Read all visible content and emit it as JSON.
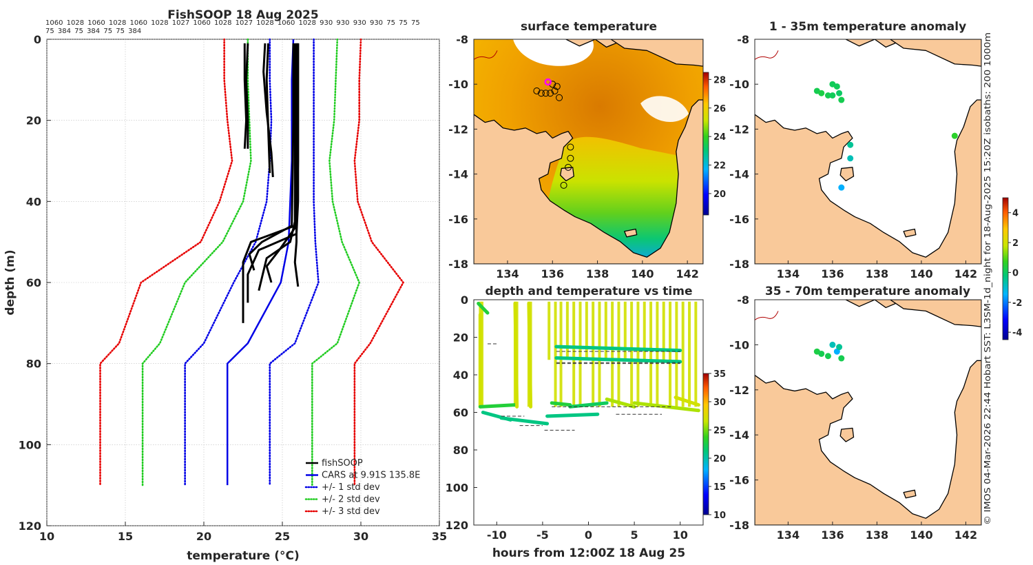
{
  "figure": {
    "title": "FishSOOP 18 Aug 2025",
    "station_labels": "1060 1028 1060 1028 1060 1028 1027 1060 1028 1027 1028 1060 1028 930 930 930 930 75 75 75 75 384 75 384 75 75 384",
    "side_note": "© IMOS 04-Mar-2026 22:44 Hobart SST: L3SM-1d_night for 18-Aug-2025 15:20Z isobaths: 200  1000m"
  },
  "colors": {
    "fishsoop": "#000000",
    "cars": "#0000e6",
    "std1": "#0000e6",
    "std2": "#22cc22",
    "std3": "#e60000",
    "land": "#f9c99a",
    "coastline": "#000000",
    "marker_pink": "#ff00ff"
  },
  "chart_data": [
    {
      "id": "profile",
      "type": "line",
      "title": "",
      "xlabel": "temperature (°C)",
      "ylabel": "depth (m)",
      "xlim": [
        10,
        35
      ],
      "ylim": [
        0,
        120
      ],
      "y_reversed": true,
      "xticks": [
        10,
        15,
        20,
        25,
        30,
        35
      ],
      "yticks": [
        0,
        20,
        40,
        60,
        80,
        100,
        120
      ],
      "grid": true,
      "legend_placement": "bottom-right",
      "depth_levels": [
        0,
        10,
        20,
        30,
        40,
        50,
        60,
        75,
        80,
        110
      ],
      "series": [
        {
          "name": "CARS at 9.91S 135.8E",
          "style": "solid",
          "color_key": "cars",
          "values": [
            25.7,
            25.6,
            25.6,
            25.6,
            25.5,
            25.4,
            24.9,
            22.8,
            21.5,
            21.5
          ]
        },
        {
          "name": "+/- 1 std dev",
          "style": "dotted",
          "color_key": "std1",
          "values": [
            24.2,
            24.2,
            24.3,
            24.2,
            24.0,
            23.3,
            21.9,
            20.0,
            18.8,
            18.8
          ]
        },
        {
          "name": "",
          "style": "dotted",
          "color_key": "std1",
          "values": [
            27.0,
            27.0,
            27.0,
            27.0,
            27.0,
            27.1,
            27.3,
            25.8,
            24.2,
            24.2
          ]
        },
        {
          "name": "+/- 2 std dev",
          "style": "dotted",
          "color_key": "std2",
          "values": [
            22.8,
            22.8,
            22.9,
            23.0,
            22.5,
            21.2,
            18.8,
            17.2,
            16.1,
            16.1
          ]
        },
        {
          "name": "",
          "style": "dotted",
          "color_key": "std2",
          "values": [
            28.5,
            28.4,
            28.3,
            28.0,
            28.2,
            28.8,
            29.9,
            28.5,
            26.9,
            26.9
          ]
        },
        {
          "name": "+/- 3 std dev",
          "style": "dotted",
          "color_key": "std3",
          "values": [
            21.3,
            21.3,
            21.5,
            21.8,
            21.0,
            19.8,
            16.0,
            14.6,
            13.4,
            13.4
          ]
        },
        {
          "name": "",
          "style": "dotted",
          "color_key": "std3",
          "values": [
            30.0,
            29.9,
            29.9,
            29.6,
            29.8,
            30.7,
            32.7,
            30.6,
            29.6,
            29.6
          ]
        }
      ],
      "observations": {
        "name": "fishSOOP",
        "color_key": "fishsoop",
        "casts": [
          {
            "depth": [
              1,
              10,
              20,
              27
            ],
            "temp": [
              22.6,
              22.6,
              22.7,
              22.6
            ]
          },
          {
            "depth": [
              1,
              10,
              20,
              27
            ],
            "temp": [
              22.8,
              22.7,
              22.8,
              22.8
            ]
          },
          {
            "depth": [
              1,
              8,
              18,
              28,
              34
            ],
            "temp": [
              23.9,
              23.8,
              24.0,
              24.3,
              24.4
            ]
          },
          {
            "depth": [
              1,
              10,
              22,
              33
            ],
            "temp": [
              24.1,
              24.0,
              24.1,
              24.2
            ]
          },
          {
            "depth": [
              1,
              20,
              40,
              46,
              50,
              55,
              70
            ],
            "temp": [
              25.9,
              25.9,
              25.9,
              25.8,
              23.0,
              22.5,
              22.5
            ]
          },
          {
            "depth": [
              1,
              20,
              40,
              48,
              52,
              58,
              65
            ],
            "temp": [
              26.0,
              26.0,
              26.0,
              25.9,
              23.5,
              22.8,
              22.8
            ]
          },
          {
            "depth": [
              1,
              25,
              45,
              50,
              54,
              62
            ],
            "temp": [
              25.8,
              25.8,
              25.8,
              25.5,
              24.0,
              23.5
            ]
          },
          {
            "depth": [
              1,
              30,
              46,
              52,
              56,
              60
            ],
            "temp": [
              26.0,
              26.0,
              25.9,
              24.8,
              24.0,
              24.3
            ]
          },
          {
            "depth": [
              1,
              30,
              45,
              50,
              55,
              61
            ],
            "temp": [
              25.9,
              25.9,
              25.9,
              25.9,
              25.8,
              26.0
            ]
          },
          {
            "depth": [
              1,
              20,
              46,
              50,
              53,
              57
            ],
            "temp": [
              25.7,
              25.7,
              25.6,
              23.7,
              22.9,
              23.2
            ]
          }
        ]
      }
    },
    {
      "id": "sst_map",
      "type": "heatmap",
      "title": "surface temperature",
      "xlim": [
        132.5,
        142.7
      ],
      "ylim": [
        -18,
        -8
      ],
      "xticks": [
        134,
        136,
        138,
        140,
        142
      ],
      "yticks": [
        -8,
        -10,
        -12,
        -14,
        -16,
        -18
      ],
      "colorbar": {
        "min": 18.5,
        "max": 28.5,
        "ticks": [
          20,
          22,
          24,
          26,
          28
        ]
      },
      "markers": [
        {
          "lon": 135.3,
          "lat": -10.3
        },
        {
          "lon": 135.5,
          "lat": -10.4
        },
        {
          "lon": 135.7,
          "lat": -10.4
        },
        {
          "lon": 135.9,
          "lat": -10.4
        },
        {
          "lon": 136.1,
          "lat": -10.3
        },
        {
          "lon": 136.2,
          "lat": -10.1
        },
        {
          "lon": 136.3,
          "lat": -10.6
        },
        {
          "lon": 136.0,
          "lat": -10.0
        },
        {
          "lon": 136.8,
          "lat": -12.8
        },
        {
          "lon": 136.8,
          "lat": -13.3
        },
        {
          "lon": 136.7,
          "lat": -13.7
        },
        {
          "lon": 136.5,
          "lat": -14.5
        }
      ],
      "highlight": {
        "lon": 135.8,
        "lat": -9.9
      }
    },
    {
      "id": "time_depth",
      "type": "scatter",
      "title": "depth and temperature vs time",
      "xlabel": "hours from 12:00Z 18 Aug 25",
      "xlim": [
        -12.5,
        12.5
      ],
      "ylim": [
        0,
        120
      ],
      "y_reversed": true,
      "xticks": [
        -10,
        -5,
        0,
        5,
        10
      ],
      "yticks": [
        0,
        20,
        40,
        60,
        80,
        100,
        120
      ],
      "colorbar": {
        "min": 10,
        "max": 35,
        "ticks": [
          10,
          15,
          20,
          25,
          30,
          35
        ]
      },
      "segments": [
        {
          "t": [
            -12.0,
            -11.0
          ],
          "depth": [
            2,
            7
          ],
          "temp": 23
        },
        {
          "t": [
            -11.8,
            -11.8
          ],
          "depth": [
            8,
            57
          ],
          "temp": 27
        },
        {
          "t": [
            -11.8,
            -8.0
          ],
          "depth": [
            57,
            56
          ],
          "temp": 23
        },
        {
          "t": [
            -11.5,
            -8.5
          ],
          "depth": [
            60,
            64
          ],
          "temp": 21
        },
        {
          "t": [
            -9.5,
            -4.5
          ],
          "depth": [
            63,
            66
          ],
          "temp": 21
        },
        {
          "t": [
            -8.0,
            -7.8
          ],
          "depth": [
            2,
            57
          ],
          "temp": 27
        },
        {
          "t": [
            -6.5,
            -6.3
          ],
          "depth": [
            2,
            57
          ],
          "temp": 27
        },
        {
          "t": [
            -4.0,
            -2.0
          ],
          "depth": [
            55,
            56
          ],
          "temp": 23
        },
        {
          "t": [
            -4.5,
            1.0
          ],
          "depth": [
            62,
            61
          ],
          "temp": 21
        },
        {
          "t": [
            -3.5,
            10.0
          ],
          "depth": [
            25,
            27
          ],
          "temp": 21
        },
        {
          "t": [
            -3.5,
            10.0
          ],
          "depth": [
            31,
            33
          ],
          "temp": 21
        },
        {
          "t": [
            -2.0,
            2.0
          ],
          "depth": [
            57,
            55
          ],
          "temp": 22
        },
        {
          "t": [
            2.0,
            5.0
          ],
          "depth": [
            53,
            57
          ],
          "temp": 26
        },
        {
          "t": [
            5.0,
            12.0
          ],
          "depth": [
            55,
            59
          ],
          "temp": 26
        },
        {
          "t": [
            9.5,
            12.0
          ],
          "depth": [
            52,
            56
          ],
          "temp": 27
        }
      ]
    },
    {
      "id": "anomaly_map_upper",
      "type": "scatter",
      "title": "1 - 35m temperature anomaly",
      "xlim": [
        132.5,
        142.7
      ],
      "ylim": [
        -18,
        -8
      ],
      "xticks": [
        134,
        136,
        138,
        140,
        142
      ],
      "yticks": [
        -8,
        -10,
        -12,
        -14,
        -16,
        -18
      ],
      "colorbar": {
        "min": -4.5,
        "max": 5,
        "ticks": [
          -4,
          -2,
          0,
          2,
          4
        ]
      },
      "points": [
        {
          "lon": 135.3,
          "lat": -10.3,
          "anom": 0.2
        },
        {
          "lon": 135.5,
          "lat": -10.4,
          "anom": 0.3
        },
        {
          "lon": 135.8,
          "lat": -10.5,
          "anom": 0.2
        },
        {
          "lon": 136.0,
          "lat": -10.5,
          "anom": 0.1
        },
        {
          "lon": 136.3,
          "lat": -10.4,
          "anom": 0.0
        },
        {
          "lon": 136.4,
          "lat": -10.7,
          "anom": 0.2
        },
        {
          "lon": 136.0,
          "lat": -10.0,
          "anom": 0.1
        },
        {
          "lon": 136.2,
          "lat": -10.1,
          "anom": 0.1
        },
        {
          "lon": 136.8,
          "lat": -12.7,
          "anom": -0.5
        },
        {
          "lon": 136.8,
          "lat": -13.3,
          "anom": -0.8
        },
        {
          "lon": 136.4,
          "lat": -14.6,
          "anom": -1.5
        },
        {
          "lon": 141.5,
          "lat": -12.3,
          "anom": 0.6
        }
      ]
    },
    {
      "id": "anomaly_map_lower",
      "type": "scatter",
      "title": "35 - 70m temperature anomaly",
      "xlim": [
        132.5,
        142.7
      ],
      "ylim": [
        -18,
        -8
      ],
      "xticks": [
        134,
        136,
        138,
        140,
        142
      ],
      "yticks": [
        -8,
        -10,
        -12,
        -14,
        -16,
        -18
      ],
      "points": [
        {
          "lon": 135.3,
          "lat": -10.3,
          "anom": 0.3
        },
        {
          "lon": 135.5,
          "lat": -10.4,
          "anom": 0.2
        },
        {
          "lon": 135.8,
          "lat": -10.5,
          "anom": 0.2
        },
        {
          "lon": 136.0,
          "lat": -10.0,
          "anom": -0.8
        },
        {
          "lon": 136.2,
          "lat": -10.3,
          "anom": -1.5
        },
        {
          "lon": 136.3,
          "lat": -10.1,
          "anom": -0.5
        },
        {
          "lon": 136.4,
          "lat": -10.6,
          "anom": 0.2
        }
      ]
    }
  ]
}
